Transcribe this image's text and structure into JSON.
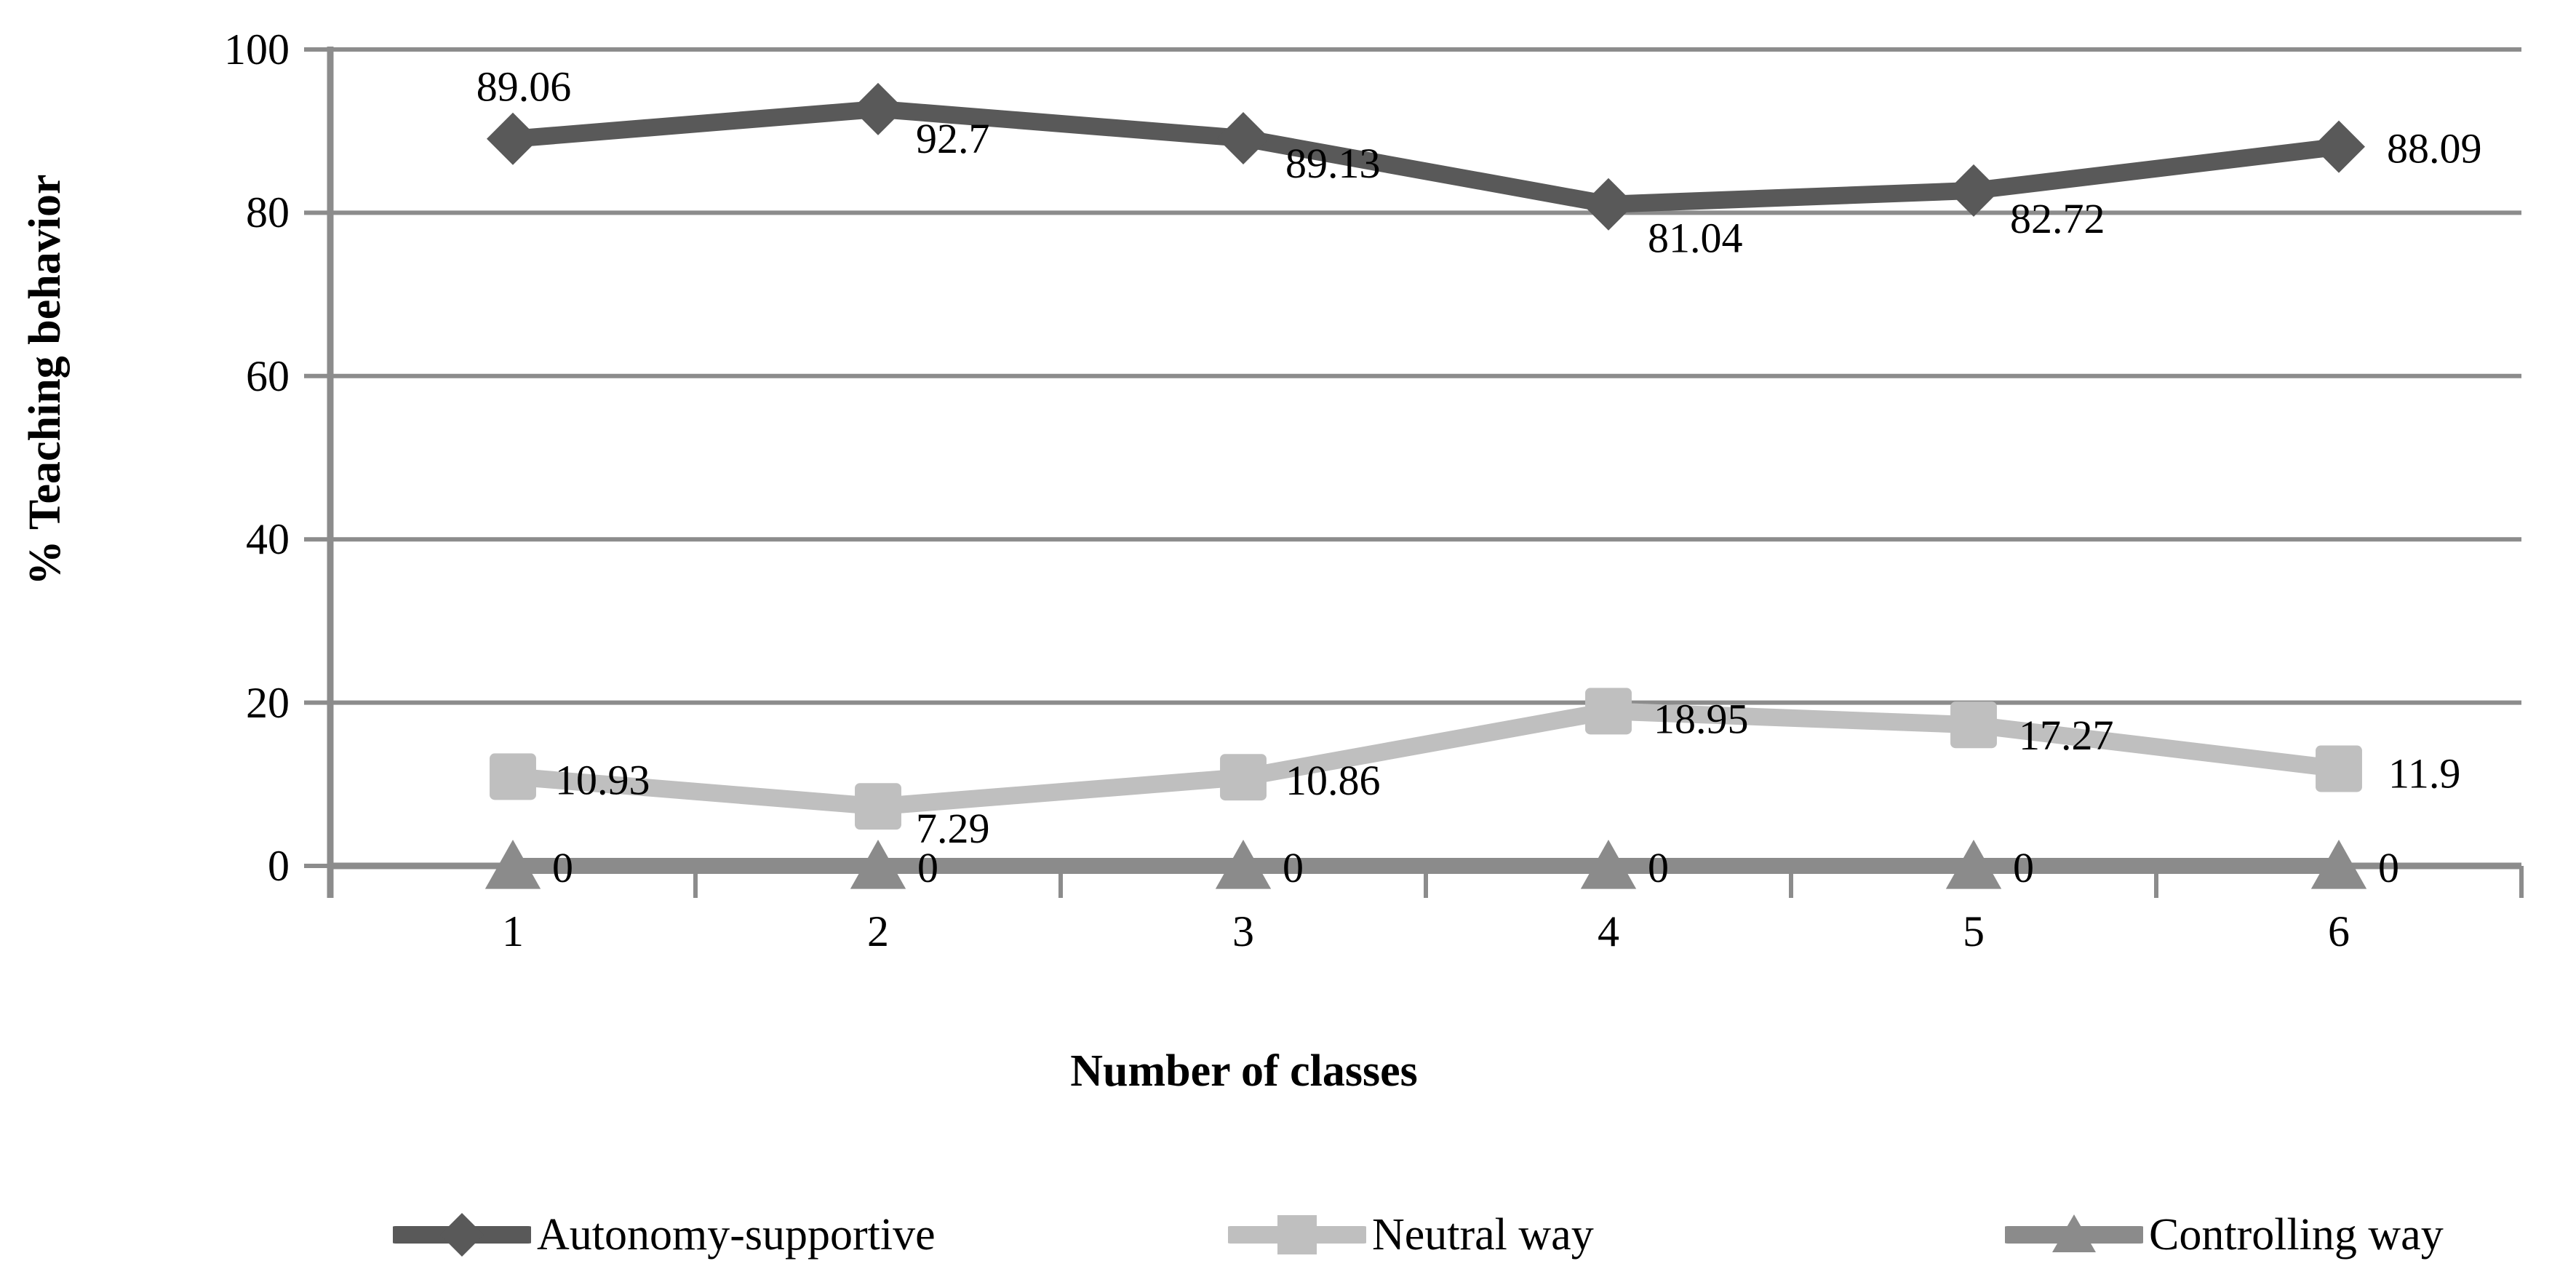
{
  "chart_data": {
    "type": "line",
    "title": "",
    "x_categories": [
      "1",
      "2",
      "3",
      "4",
      "5",
      "6"
    ],
    "xlabel": "Number of classes",
    "ylabel": "% Teaching behavior",
    "ylim": [
      0,
      100
    ],
    "yticks": [
      "0",
      "20",
      "40",
      "60",
      "80",
      "100"
    ],
    "grid": true,
    "legend_position": "bottom",
    "series": [
      {
        "name": "Autonomy-supportive",
        "marker": "diamond",
        "color": "#595959",
        "values": [
          89.06,
          92.7,
          89.13,
          81.04,
          82.72,
          88.09
        ],
        "data_labels": [
          "89.06",
          "92.7",
          "89.13",
          "81.04",
          "82.72",
          "88.09"
        ]
      },
      {
        "name": "Neutral way",
        "marker": "square",
        "color": "#bfbfbf",
        "values": [
          10.93,
          7.29,
          10.86,
          18.95,
          17.27,
          11.9
        ],
        "data_labels": [
          "10.93",
          "7.29",
          "10.86",
          "18.95",
          "17.27",
          "11.9"
        ]
      },
      {
        "name": "Controlling way",
        "marker": "triangle",
        "color": "#8b8b8b",
        "values": [
          0,
          0,
          0,
          0,
          0,
          0
        ],
        "data_labels": [
          "0",
          "0",
          "0",
          "0",
          "0",
          "0"
        ]
      }
    ],
    "axis_color": "#8c8c8c",
    "gridline_color": "#8c8c8c",
    "label_color": "#000000",
    "background": "#ffffff"
  }
}
